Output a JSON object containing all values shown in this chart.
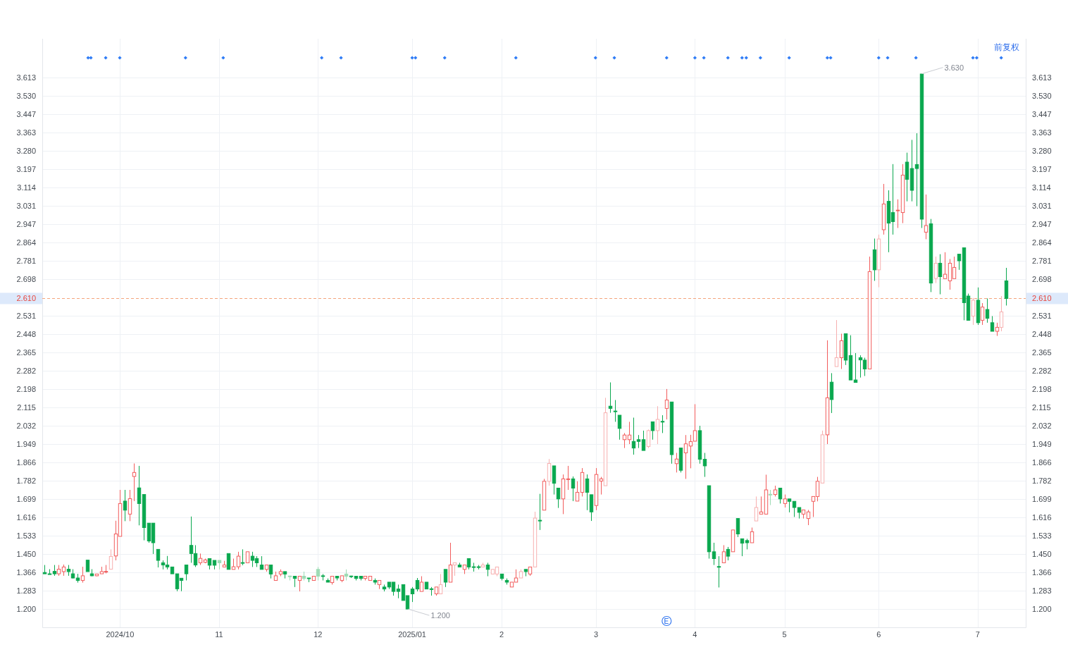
{
  "chart_data": {
    "type": "candlestick",
    "categories": [
      null,
      null,
      null,
      null,
      null,
      null,
      null,
      null,
      null,
      null,
      null,
      null,
      null,
      null,
      null,
      null,
      "2024/10",
      null,
      null,
      null,
      null,
      null,
      null,
      null,
      null,
      null,
      null,
      null,
      null,
      null,
      null,
      null,
      null,
      null,
      null,
      null,
      null,
      "11",
      null,
      null,
      null,
      null,
      null,
      null,
      null,
      null,
      null,
      null,
      null,
      null,
      null,
      null,
      null,
      null,
      null,
      null,
      null,
      null,
      "12",
      null,
      null,
      null,
      null,
      null,
      null,
      null,
      null,
      null,
      null,
      null,
      null,
      null,
      null,
      null,
      null,
      null,
      null,
      null,
      "2025/01",
      null,
      null,
      null,
      null,
      null,
      null,
      null,
      null,
      null,
      null,
      null,
      null,
      null,
      null,
      null,
      null,
      null,
      null,
      "2",
      null,
      null,
      null,
      null,
      null,
      null,
      null,
      null,
      null,
      null,
      null,
      null,
      null,
      null,
      null,
      null,
      null,
      null,
      null,
      "3",
      null,
      null,
      null,
      null,
      null,
      null,
      null,
      null,
      null,
      null,
      null,
      null,
      null,
      null,
      null,
      null,
      null,
      null,
      null,
      null,
      "4",
      null,
      null,
      null,
      null,
      null,
      null,
      null,
      null,
      null,
      null,
      null,
      null,
      null,
      null,
      null,
      null,
      null,
      null,
      "5",
      null,
      null,
      null,
      null,
      null,
      null,
      null,
      null,
      null,
      null,
      null,
      null,
      null,
      null,
      null,
      null,
      null,
      null,
      null,
      "6",
      null,
      null,
      null,
      null,
      null,
      null,
      null,
      null,
      null,
      null,
      null,
      null,
      null,
      null,
      null,
      null,
      null,
      null,
      null,
      null,
      "7",
      null,
      null,
      null,
      null,
      null,
      null
    ],
    "ohlc": [
      [
        1.366,
        1.4,
        1.36,
        1.36
      ],
      [
        1.36,
        1.381,
        1.358,
        1.358
      ],
      [
        1.371,
        1.4,
        1.351,
        1.36
      ],
      [
        1.36,
        1.4,
        1.351,
        1.381
      ],
      [
        1.37,
        1.402,
        1.351,
        1.391
      ],
      [
        1.381,
        1.4,
        1.351,
        1.37
      ],
      [
        1.36,
        1.381,
        1.339,
        1.341
      ],
      [
        1.341,
        1.36,
        1.32,
        1.33
      ],
      [
        1.33,
        1.392,
        1.32,
        1.351
      ],
      [
        1.422,
        1.422,
        1.37,
        1.37
      ],
      [
        1.36,
        1.381,
        1.349,
        1.351
      ],
      [
        1.351,
        1.359,
        1.349,
        1.359
      ],
      [
        1.36,
        1.392,
        1.36,
        1.37
      ],
      [
        1.369,
        1.4,
        1.362,
        1.371
      ],
      [
        1.381,
        1.471,
        1.381,
        1.439
      ],
      [
        1.441,
        1.601,
        1.421,
        1.541
      ],
      [
        1.53,
        1.741,
        1.53,
        1.679
      ],
      [
        1.69,
        1.741,
        1.599,
        1.649
      ],
      [
        1.631,
        1.741,
        1.599,
        1.701
      ],
      [
        1.802,
        1.861,
        1.69,
        1.82
      ],
      [
        1.75,
        1.85,
        1.58,
        1.679
      ],
      [
        1.72,
        1.72,
        1.512,
        1.57
      ],
      [
        1.59,
        1.59,
        1.501,
        1.509
      ],
      [
        1.59,
        1.59,
        1.45,
        1.501
      ],
      [
        1.471,
        1.471,
        1.389,
        1.421
      ],
      [
        1.41,
        1.421,
        1.38,
        1.4
      ],
      [
        1.4,
        1.441,
        1.38,
        1.391
      ],
      [
        1.391,
        1.391,
        1.36,
        1.36
      ],
      [
        1.36,
        1.36,
        1.281,
        1.292
      ],
      [
        1.34,
        1.34,
        1.281,
        1.33
      ],
      [
        1.4,
        1.4,
        1.33,
        1.36
      ],
      [
        1.489,
        1.62,
        1.41,
        1.452
      ],
      [
        1.452,
        1.49,
        1.391,
        1.4
      ],
      [
        1.41,
        1.452,
        1.4,
        1.43
      ],
      [
        1.412,
        1.429,
        1.408,
        1.423
      ],
      [
        1.429,
        1.429,
        1.38,
        1.399
      ],
      [
        1.421,
        1.421,
        1.38,
        1.399
      ],
      [
        1.421,
        1.421,
        1.38,
        1.41
      ],
      [
        1.391,
        1.419,
        1.391,
        1.4
      ],
      [
        1.452,
        1.452,
        1.38,
        1.38
      ],
      [
        1.38,
        1.429,
        1.38,
        1.392
      ],
      [
        1.392,
        1.46,
        1.38,
        1.44
      ],
      [
        1.411,
        1.471,
        1.399,
        1.409
      ],
      [
        1.41,
        1.46,
        1.41,
        1.46
      ],
      [
        1.44,
        1.46,
        1.391,
        1.421
      ],
      [
        1.429,
        1.44,
        1.391,
        1.41
      ],
      [
        1.4,
        1.44,
        1.38,
        1.38
      ],
      [
        1.38,
        1.4,
        1.37,
        1.4
      ],
      [
        1.4,
        1.4,
        1.339,
        1.359
      ],
      [
        1.33,
        1.37,
        1.33,
        1.351
      ],
      [
        1.359,
        1.38,
        1.349,
        1.37
      ],
      [
        1.37,
        1.37,
        1.339,
        1.359
      ],
      [
        1.35,
        1.35,
        1.33,
        1.349
      ],
      [
        1.349,
        1.349,
        1.3,
        1.339
      ],
      [
        1.33,
        1.349,
        1.28,
        1.349
      ],
      [
        1.349,
        1.37,
        1.33,
        1.339
      ],
      [
        1.341,
        1.341,
        1.322,
        1.34
      ],
      [
        1.33,
        1.349,
        1.33,
        1.349
      ],
      [
        1.38,
        1.391,
        1.33,
        1.349
      ],
      [
        1.351,
        1.359,
        1.33,
        1.35
      ],
      [
        1.33,
        1.339,
        1.322,
        1.322
      ],
      [
        1.32,
        1.349,
        1.311,
        1.349
      ],
      [
        1.349,
        1.349,
        1.33,
        1.341
      ],
      [
        1.33,
        1.351,
        1.322,
        1.351
      ],
      [
        1.359,
        1.38,
        1.33,
        1.349
      ],
      [
        1.35,
        1.351,
        1.341,
        1.349
      ],
      [
        1.349,
        1.349,
        1.33,
        1.339
      ],
      [
        1.349,
        1.349,
        1.33,
        1.339
      ],
      [
        1.339,
        1.349,
        1.33,
        1.349
      ],
      [
        1.33,
        1.349,
        1.33,
        1.349
      ],
      [
        1.33,
        1.339,
        1.311,
        1.322
      ],
      [
        1.311,
        1.33,
        1.291,
        1.33
      ],
      [
        1.3,
        1.311,
        1.28,
        1.291
      ],
      [
        1.322,
        1.322,
        1.291,
        1.3
      ],
      [
        1.322,
        1.322,
        1.261,
        1.28
      ],
      [
        1.291,
        1.311,
        1.249,
        1.28
      ],
      [
        1.311,
        1.311,
        1.239,
        1.239
      ],
      [
        1.261,
        1.261,
        1.2,
        1.2
      ],
      [
        1.291,
        1.3,
        1.232,
        1.269
      ],
      [
        1.33,
        1.341,
        1.28,
        1.291
      ],
      [
        1.28,
        1.349,
        1.28,
        1.322
      ],
      [
        1.322,
        1.322,
        1.291,
        1.291
      ],
      [
        1.292,
        1.3,
        1.261,
        1.291
      ],
      [
        1.269,
        1.3,
        1.261,
        1.3
      ],
      [
        1.269,
        1.359,
        1.269,
        1.311
      ],
      [
        1.38,
        1.38,
        1.3,
        1.322
      ],
      [
        1.322,
        1.501,
        1.322,
        1.4
      ],
      [
        1.4,
        1.41,
        1.351,
        1.41
      ],
      [
        1.4,
        1.41,
        1.391,
        1.391
      ],
      [
        1.38,
        1.4,
        1.359,
        1.4
      ],
      [
        1.429,
        1.429,
        1.38,
        1.391
      ],
      [
        1.392,
        1.41,
        1.37,
        1.391
      ],
      [
        1.392,
        1.4,
        1.38,
        1.391
      ],
      [
        1.391,
        1.41,
        1.391,
        1.4
      ],
      [
        1.4,
        1.41,
        1.349,
        1.38
      ],
      [
        1.359,
        1.38,
        1.359,
        1.38
      ],
      [
        1.359,
        1.391,
        1.349,
        1.391
      ],
      [
        1.359,
        1.359,
        1.33,
        1.339
      ],
      [
        1.33,
        1.339,
        1.311,
        1.322
      ],
      [
        1.3,
        1.322,
        1.3,
        1.322
      ],
      [
        1.322,
        1.38,
        1.322,
        1.341
      ],
      [
        1.341,
        1.38,
        1.341,
        1.37
      ],
      [
        1.38,
        1.38,
        1.349,
        1.37
      ],
      [
        1.359,
        1.391,
        1.351,
        1.391
      ],
      [
        1.391,
        1.642,
        1.391,
        1.613
      ],
      [
        1.603,
        1.723,
        1.559,
        1.602
      ],
      [
        1.649,
        1.791,
        1.649,
        1.78
      ],
      [
        1.78,
        1.881,
        1.76,
        1.861
      ],
      [
        1.85,
        1.85,
        1.72,
        1.771
      ],
      [
        1.749,
        1.749,
        1.659,
        1.7
      ],
      [
        1.7,
        1.811,
        1.631,
        1.791
      ],
      [
        1.79,
        1.85,
        1.741,
        1.791
      ],
      [
        1.791,
        1.802,
        1.69,
        1.749
      ],
      [
        1.69,
        1.78,
        1.69,
        1.73
      ],
      [
        1.73,
        1.84,
        1.711,
        1.82
      ],
      [
        1.791,
        1.811,
        1.649,
        1.73
      ],
      [
        1.719,
        1.719,
        1.6,
        1.641
      ],
      [
        1.67,
        1.84,
        1.649,
        1.811
      ],
      [
        1.781,
        1.8,
        1.72,
        1.791
      ],
      [
        1.76,
        2.159,
        1.76,
        2.091
      ],
      [
        2.121,
        2.229,
        2.091,
        2.111
      ],
      [
        2.099,
        2.149,
        2.05,
        2.098
      ],
      [
        2.08,
        2.08,
        1.969,
        2.02
      ],
      [
        1.969,
        1.999,
        1.931,
        1.99
      ],
      [
        1.969,
        2.05,
        1.949,
        1.99
      ],
      [
        1.961,
        2.069,
        1.901,
        1.931
      ],
      [
        1.969,
        1.99,
        1.931,
        1.961
      ],
      [
        1.969,
        2.01,
        1.92,
        1.92
      ],
      [
        1.938,
        2.015,
        1.931,
        2.01
      ],
      [
        2.05,
        2.05,
        1.969,
        2.01
      ],
      [
        2.01,
        2.121,
        1.949,
        2.061
      ],
      [
        2.052,
        2.08,
        1.999,
        2.051
      ],
      [
        2.111,
        2.199,
        2.061,
        2.149
      ],
      [
        2.14,
        2.14,
        1.86,
        1.901
      ],
      [
        1.86,
        1.909,
        1.82,
        1.881
      ],
      [
        1.931,
        1.931,
        1.82,
        1.83
      ],
      [
        1.909,
        1.99,
        1.791,
        1.95
      ],
      [
        1.94,
        1.991,
        1.839,
        1.96
      ],
      [
        1.962,
        2.13,
        1.962,
        2.01
      ],
      [
        2.01,
        2.032,
        1.86,
        1.88
      ],
      [
        1.88,
        1.909,
        1.8,
        1.85
      ],
      [
        1.76,
        1.76,
        1.429,
        1.46
      ],
      [
        1.46,
        1.501,
        1.4,
        1.429
      ],
      [
        1.393,
        1.44,
        1.298,
        1.392
      ],
      [
        1.41,
        1.49,
        1.41,
        1.46
      ],
      [
        1.471,
        1.482,
        1.421,
        1.44
      ],
      [
        1.46,
        1.559,
        1.46,
        1.559
      ],
      [
        1.611,
        1.611,
        1.527,
        1.541
      ],
      [
        1.519,
        1.519,
        1.44,
        1.499
      ],
      [
        1.511,
        1.519,
        1.471,
        1.501
      ],
      [
        1.501,
        1.57,
        1.501,
        1.551
      ],
      [
        1.6,
        1.711,
        1.6,
        1.661
      ],
      [
        1.631,
        1.711,
        1.631,
        1.641
      ],
      [
        1.631,
        1.81,
        1.631,
        1.741
      ],
      [
        1.721,
        1.741,
        1.672,
        1.72
      ],
      [
        1.72,
        1.76,
        1.711,
        1.741
      ],
      [
        1.749,
        1.749,
        1.679,
        1.7
      ],
      [
        1.679,
        1.72,
        1.661,
        1.7
      ],
      [
        1.7,
        1.7,
        1.639,
        1.689
      ],
      [
        1.689,
        1.689,
        1.618,
        1.661
      ],
      [
        1.661,
        1.661,
        1.611,
        1.639
      ],
      [
        1.631,
        1.65,
        1.611,
        1.65
      ],
      [
        1.611,
        1.65,
        1.581,
        1.641
      ],
      [
        1.689,
        1.711,
        1.618,
        1.711
      ],
      [
        1.711,
        1.8,
        1.689,
        1.78
      ],
      [
        1.772,
        2.01,
        1.772,
        1.991
      ],
      [
        1.991,
        2.42,
        1.949,
        2.159
      ],
      [
        2.23,
        2.271,
        2.09,
        2.151
      ],
      [
        2.301,
        2.512,
        2.301,
        2.341
      ],
      [
        2.341,
        2.45,
        2.29,
        2.418
      ],
      [
        2.45,
        2.45,
        2.308,
        2.33
      ],
      [
        2.351,
        2.443,
        2.24,
        2.24
      ],
      [
        2.24,
        2.362,
        2.229,
        2.229
      ],
      [
        2.341,
        2.352,
        2.251,
        2.331
      ],
      [
        2.33,
        2.341,
        2.258,
        2.29
      ],
      [
        2.29,
        2.8,
        2.29,
        2.732
      ],
      [
        2.831,
        2.882,
        2.69,
        2.74
      ],
      [
        2.74,
        2.9,
        2.661,
        2.88
      ],
      [
        2.922,
        3.13,
        2.9,
        3.039
      ],
      [
        3.051,
        3.101,
        2.82,
        2.952
      ],
      [
        3.0,
        3.22,
        2.9,
        2.959
      ],
      [
        3.01,
        3.06,
        2.93,
        3.011
      ],
      [
        3.0,
        3.22,
        2.952,
        3.17
      ],
      [
        3.229,
        3.272,
        3.051,
        3.151
      ],
      [
        3.2,
        3.33,
        3.051,
        3.101
      ],
      [
        3.218,
        3.36,
        3.029,
        3.2
      ],
      [
        3.629,
        3.63,
        2.93,
        2.97
      ],
      [
        2.911,
        3.082,
        2.879,
        2.941
      ],
      [
        2.949,
        2.971,
        2.639,
        2.68
      ],
      [
        2.701,
        2.8,
        2.68,
        2.77
      ],
      [
        2.77,
        2.811,
        2.629,
        2.709
      ],
      [
        2.7,
        2.82,
        2.7,
        2.72
      ],
      [
        2.69,
        2.789,
        2.65,
        2.77
      ],
      [
        2.7,
        2.8,
        2.7,
        2.751
      ],
      [
        2.811,
        2.811,
        2.74,
        2.781
      ],
      [
        2.84,
        2.84,
        2.511,
        2.591
      ],
      [
        2.621,
        2.632,
        2.511,
        2.511
      ],
      [
        2.53,
        2.612,
        2.49,
        2.602
      ],
      [
        2.602,
        2.66,
        2.49,
        2.5
      ],
      [
        2.511,
        2.589,
        2.49,
        2.571
      ],
      [
        2.56,
        2.61,
        2.5,
        2.52
      ],
      [
        2.5,
        2.53,
        2.461,
        2.461
      ],
      [
        2.461,
        2.5,
        2.44,
        2.479
      ],
      [
        2.479,
        2.621,
        2.461,
        2.549
      ],
      [
        2.69,
        2.749,
        2.578,
        2.61
      ]
    ],
    "value_labels": [
      null,
      null,
      null,
      null,
      null,
      null,
      null,
      null,
      null,
      null,
      null,
      null,
      null,
      null,
      null,
      null,
      null,
      null,
      null,
      null,
      null,
      null,
      null,
      null,
      null,
      null,
      null,
      null,
      null,
      null,
      null,
      null,
      null,
      null,
      null,
      null,
      null,
      null,
      null,
      null,
      null,
      null,
      null,
      null,
      null,
      null,
      null,
      null,
      null,
      null,
      null,
      null,
      null,
      null,
      null,
      null,
      null,
      null,
      null,
      null,
      null,
      null,
      null,
      null,
      null,
      null,
      null,
      null,
      null,
      null,
      null,
      null,
      null,
      null,
      null,
      null,
      null,
      "1.200",
      null,
      null,
      null,
      null,
      null,
      null,
      null,
      null,
      null,
      null,
      null,
      null,
      null,
      null,
      null,
      null,
      null,
      null,
      null,
      null,
      null,
      null,
      null,
      null,
      null,
      null,
      null,
      null,
      null,
      null,
      null,
      null,
      null,
      null,
      null,
      null,
      null,
      null,
      null,
      null,
      null,
      null,
      null,
      null,
      null,
      null,
      null,
      null,
      null,
      null,
      null,
      null,
      null,
      null,
      null,
      null,
      null,
      null,
      null,
      null,
      null,
      null,
      null,
      null,
      null,
      null,
      null,
      null,
      null,
      null,
      null,
      null,
      null,
      null,
      null,
      null,
      null,
      null,
      null,
      null,
      null,
      null,
      null,
      null,
      null,
      null,
      null,
      null,
      null,
      null,
      null,
      null,
      null,
      null,
      null,
      null,
      null,
      null,
      null,
      null,
      null,
      null,
      null,
      null,
      null,
      null,
      null,
      null,
      "3.630",
      null,
      null,
      null,
      null,
      null,
      null,
      null,
      null,
      null,
      null,
      null,
      null,
      null,
      null,
      null,
      null,
      null,
      null
    ],
    "colors": [
      "#0aa84f",
      "#0aa84f",
      "#0aa84f",
      "#f25c5c",
      "#f25c5c",
      "#0aa84f",
      "#0aa84f",
      "#0aa84f",
      "#f25c5c",
      "#0aa84f",
      "#0aa84f",
      "#f25c5c",
      "#f25c5c",
      "#f25c5c",
      "#f7b0b0",
      "#f25c5c",
      "#f25c5c",
      "#0aa84f",
      "#f25c5c",
      "#f25c5c",
      "#0aa84f",
      "#0aa84f",
      "#0aa84f",
      "#0aa84f",
      "#0aa84f",
      "#0aa84f",
      "#0aa84f",
      "#0aa84f",
      "#0aa84f",
      "#0aa84f",
      "#0aa84f",
      "#0aa84f",
      "#0aa84f",
      "#f25c5c",
      "#f25c5c",
      "#0aa84f",
      "#0aa84f",
      "#9edbb5",
      "#f25c5c",
      "#0aa84f",
      "#f25c5c",
      "#f25c5c",
      "#0aa84f",
      "#f25c5c",
      "#0aa84f",
      "#0aa84f",
      "#0aa84f",
      "#f25c5c",
      "#0aa84f",
      "#f25c5c",
      "#f25c5c",
      "#0aa84f",
      "#9edbb5",
      "#0aa84f",
      "#f25c5c",
      "#9edbb5",
      "#0aa84f",
      "#f25c5c",
      "#9edbb5",
      "#0aa84f",
      "#0aa84f",
      "#f25c5c",
      "#0aa84f",
      "#f25c5c",
      "#9edbb5",
      "#0aa84f",
      "#0aa84f",
      "#0aa84f",
      "#f25c5c",
      "#f25c5c",
      "#0aa84f",
      "#f25c5c",
      "#0aa84f",
      "#0aa84f",
      "#0aa84f",
      "#0aa84f",
      "#0aa84f",
      "#0aa84f",
      "#0aa84f",
      "#0aa84f",
      "#f25c5c",
      "#0aa84f",
      "#0aa84f",
      "#f25c5c",
      "#f7b0b0",
      "#0aa84f",
      "#f25c5c",
      "#f7b0b0",
      "#0aa84f",
      "#f25c5c",
      "#0aa84f",
      "#0aa84f",
      "#0aa84f",
      "#f7b0b0",
      "#0aa84f",
      "#f7b0b0",
      "#f7b0b0",
      "#0aa84f",
      "#0aa84f",
      "#f25c5c",
      "#f25c5c",
      "#f7b0b0",
      "#0aa84f",
      "#f25c5c",
      "#f7b0b0",
      "#0aa84f",
      "#f25c5c",
      "#f7b0b0",
      "#0aa84f",
      "#0aa84f",
      "#f25c5c",
      "#f25c5c",
      "#0aa84f",
      "#f25c5c",
      "#f25c5c",
      "#0aa84f",
      "#0aa84f",
      "#f25c5c",
      "#f25c5c",
      "#f7b0b0",
      "#0aa84f",
      "#0aa84f",
      "#0aa84f",
      "#f25c5c",
      "#f25c5c",
      "#0aa84f",
      "#0aa84f",
      "#0aa84f",
      "#f7b0b0",
      "#0aa84f",
      "#f7b0b0",
      "#0aa84f",
      "#f25c5c",
      "#0aa84f",
      "#f25c5c",
      "#0aa84f",
      "#f25c5c",
      "#f25c5c",
      "#f25c5c",
      "#0aa84f",
      "#0aa84f",
      "#0aa84f",
      "#0aa84f",
      "#0aa84f",
      "#f25c5c",
      "#0aa84f",
      "#f25c5c",
      "#0aa84f",
      "#0aa84f",
      "#0aa84f",
      "#f25c5c",
      "#f7b0b0",
      "#f25c5c",
      "#f25c5c",
      "#9edbb5",
      "#f25c5c",
      "#0aa84f",
      "#f25c5c",
      "#0aa84f",
      "#0aa84f",
      "#0aa84f",
      "#f25c5c",
      "#f25c5c",
      "#f25c5c",
      "#f25c5c",
      "#f7b0b0",
      "#f25c5c",
      "#0aa84f",
      "#f7b0b0",
      "#f25c5c",
      "#0aa84f",
      "#0aa84f",
      "#0aa84f",
      "#0aa84f",
      "#0aa84f",
      "#f25c5c",
      "#0aa84f",
      "#f7b0b0",
      "#f25c5c",
      "#0aa84f",
      "#0aa84f",
      "#f25c5c",
      "#f25c5c",
      "#0aa84f",
      "#0aa84f",
      "#0aa84f",
      "#0aa84f",
      "#f25c5c",
      "#0aa84f",
      "#f7b0b0",
      "#0aa84f",
      "#f25c5c",
      "#f25c5c",
      "#f25c5c",
      "#0aa84f",
      "#0aa84f",
      "#0aa84f",
      "#f7b0b0",
      "#0aa84f",
      "#f25c5c",
      "#0aa84f",
      "#0aa84f",
      "#f25c5c",
      "#f7b0b0",
      "#0aa84f"
    ],
    "ylim": [
      1.117,
      3.789
    ],
    "yticks": [
      3.613,
      {
        "value": 3.53,
        "label": "3.530"
      },
      3.447,
      3.363,
      {
        "value": 3.28,
        "label": "3.280"
      },
      3.197,
      3.114,
      3.031,
      2.947,
      2.864,
      2.781,
      2.698,
      2.531,
      2.448,
      2.365,
      2.282,
      2.198,
      2.115,
      2.032,
      1.949,
      1.866,
      1.782,
      1.699,
      1.616,
      1.533,
      {
        "value": 1.45,
        "label": "1.450"
      },
      1.366,
      1.283,
      {
        "value": 1.2,
        "label": "1.200"
      }
    ],
    "y2lim": [
      1.117,
      3.789
    ],
    "y2ticks": [
      3.613,
      {
        "value": 3.53,
        "label": "3.530"
      },
      3.447,
      3.363,
      {
        "value": 3.28,
        "label": "3.280"
      },
      3.197,
      3.114,
      3.031,
      2.947,
      2.864,
      2.781,
      2.698,
      2.531,
      2.448,
      2.365,
      2.282,
      2.198,
      2.115,
      2.032,
      1.949,
      1.866,
      1.782,
      1.699,
      1.616,
      1.533,
      {
        "value": 1.45,
        "label": "1.450"
      },
      1.366,
      1.283,
      {
        "value": 1.2,
        "label": "1.200"
      }
    ],
    "grid": true,
    "ref_lines": [
      {
        "axis": "y",
        "value": 2.61,
        "label": "2.610",
        "color": "#f4a47c",
        "line_style": "dashed"
      }
    ],
    "annotations": [
      "前复权"
    ]
  }
}
